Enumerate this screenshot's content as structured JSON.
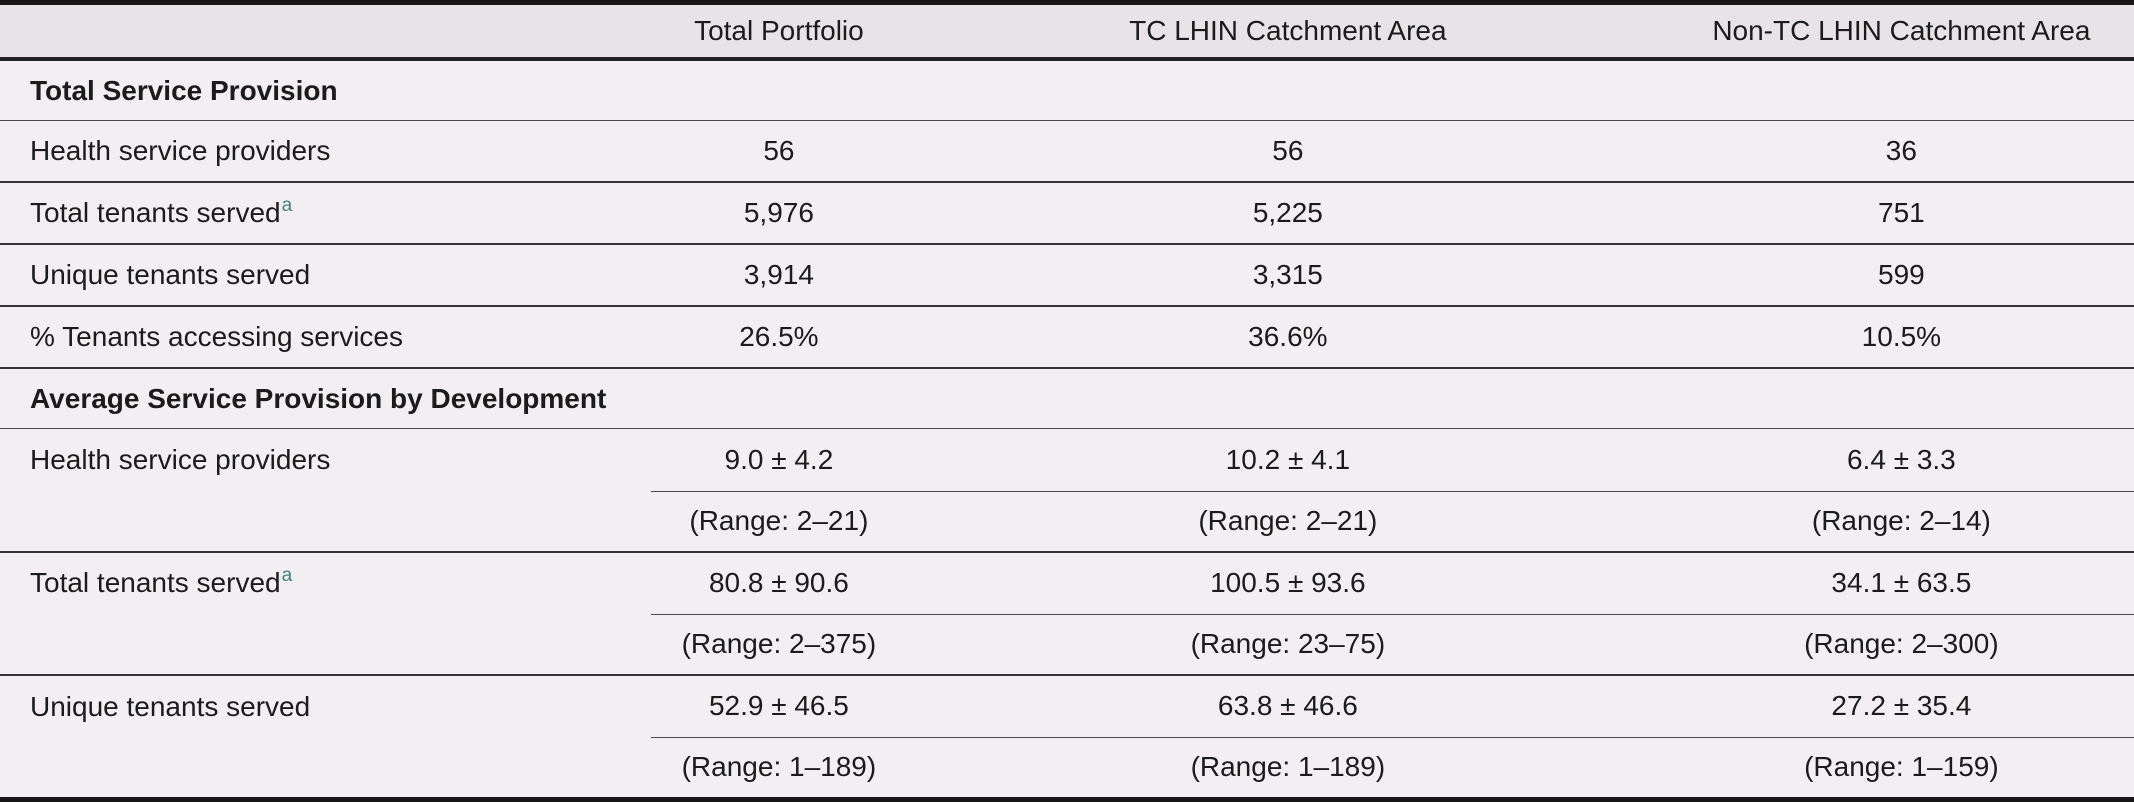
{
  "table": {
    "columns": [
      "",
      "Total Portfolio",
      "TC LHIN Catchment Area",
      "Non-TC LHIN Catchment Area"
    ],
    "footnote_marker": "a",
    "sections": [
      {
        "title": "Total Service Provision",
        "rows": [
          {
            "label": "Health service providers",
            "values": [
              "56",
              "56",
              "36"
            ]
          },
          {
            "label": "Total tenants served",
            "footnote": "a",
            "values": [
              "5,976",
              "5,225",
              "751"
            ]
          },
          {
            "label": "Unique tenants served",
            "values": [
              "3,914",
              "3,315",
              "599"
            ]
          },
          {
            "label": "% Tenants accessing services",
            "values": [
              "26.5%",
              "36.6%",
              "10.5%"
            ]
          }
        ]
      },
      {
        "title": "Average Service Provision by Development",
        "rows": [
          {
            "label": "Health service providers",
            "values": [
              "9.0 ± 4.2",
              "10.2 ± 4.1",
              "6.4 ± 3.3"
            ],
            "ranges": [
              "(Range: 2–21)",
              "(Range: 2–21)",
              "(Range: 2–14)"
            ]
          },
          {
            "label": "Total tenants served",
            "footnote": "a",
            "values": [
              "80.8 ± 90.6",
              "100.5 ± 93.6",
              "34.1 ± 63.5"
            ],
            "ranges": [
              "(Range: 2–375)",
              "(Range: 23–75)",
              "(Range: 2–300)"
            ]
          },
          {
            "label": "Unique tenants served",
            "values": [
              "52.9 ± 46.5",
              "63.8 ± 46.6",
              "27.2 ± 35.4"
            ],
            "ranges": [
              "(Range: 1–189)",
              "(Range: 1–189)",
              "(Range: 1–159)"
            ]
          }
        ]
      }
    ]
  },
  "colors": {
    "body_background": "#f2eef1",
    "header_background": "#e7e3e6",
    "rule_dark": "#161616",
    "rule_medium": "#333333",
    "rule_thin": "#4a4a4a",
    "text": "#1b1b1b",
    "footnote_accent": "#41807e"
  }
}
